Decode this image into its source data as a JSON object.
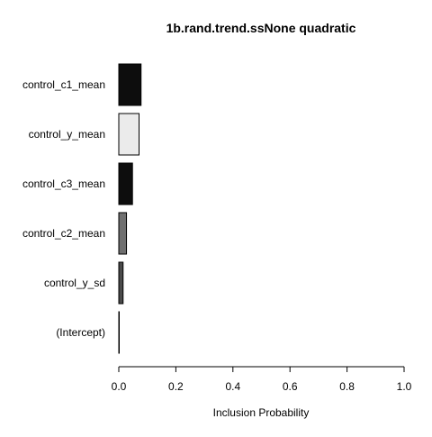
{
  "chart_data": {
    "type": "bar",
    "orientation": "horizontal",
    "title": "1b.rand.trend.ssNone quadratic",
    "xlabel": "Inclusion Probability",
    "ylabel": "",
    "xlim": [
      0,
      1
    ],
    "xticks": [
      "0.0",
      "0.2",
      "0.4",
      "0.6",
      "0.8",
      "1.0"
    ],
    "categories": [
      "control_c1_mean",
      "control_y_mean",
      "control_c3_mean",
      "control_c2_mean",
      "control_y_sd",
      "(Intercept)"
    ],
    "values": [
      0.078,
      0.071,
      0.048,
      0.027,
      0.015,
      0.001
    ],
    "bar_colors": [
      "#0d0d0d",
      "#ebebeb",
      "#0d0d0d",
      "#6f6f6f",
      "#4a4a4a",
      "#ffffff"
    ],
    "grid": false,
    "legend": "none"
  }
}
